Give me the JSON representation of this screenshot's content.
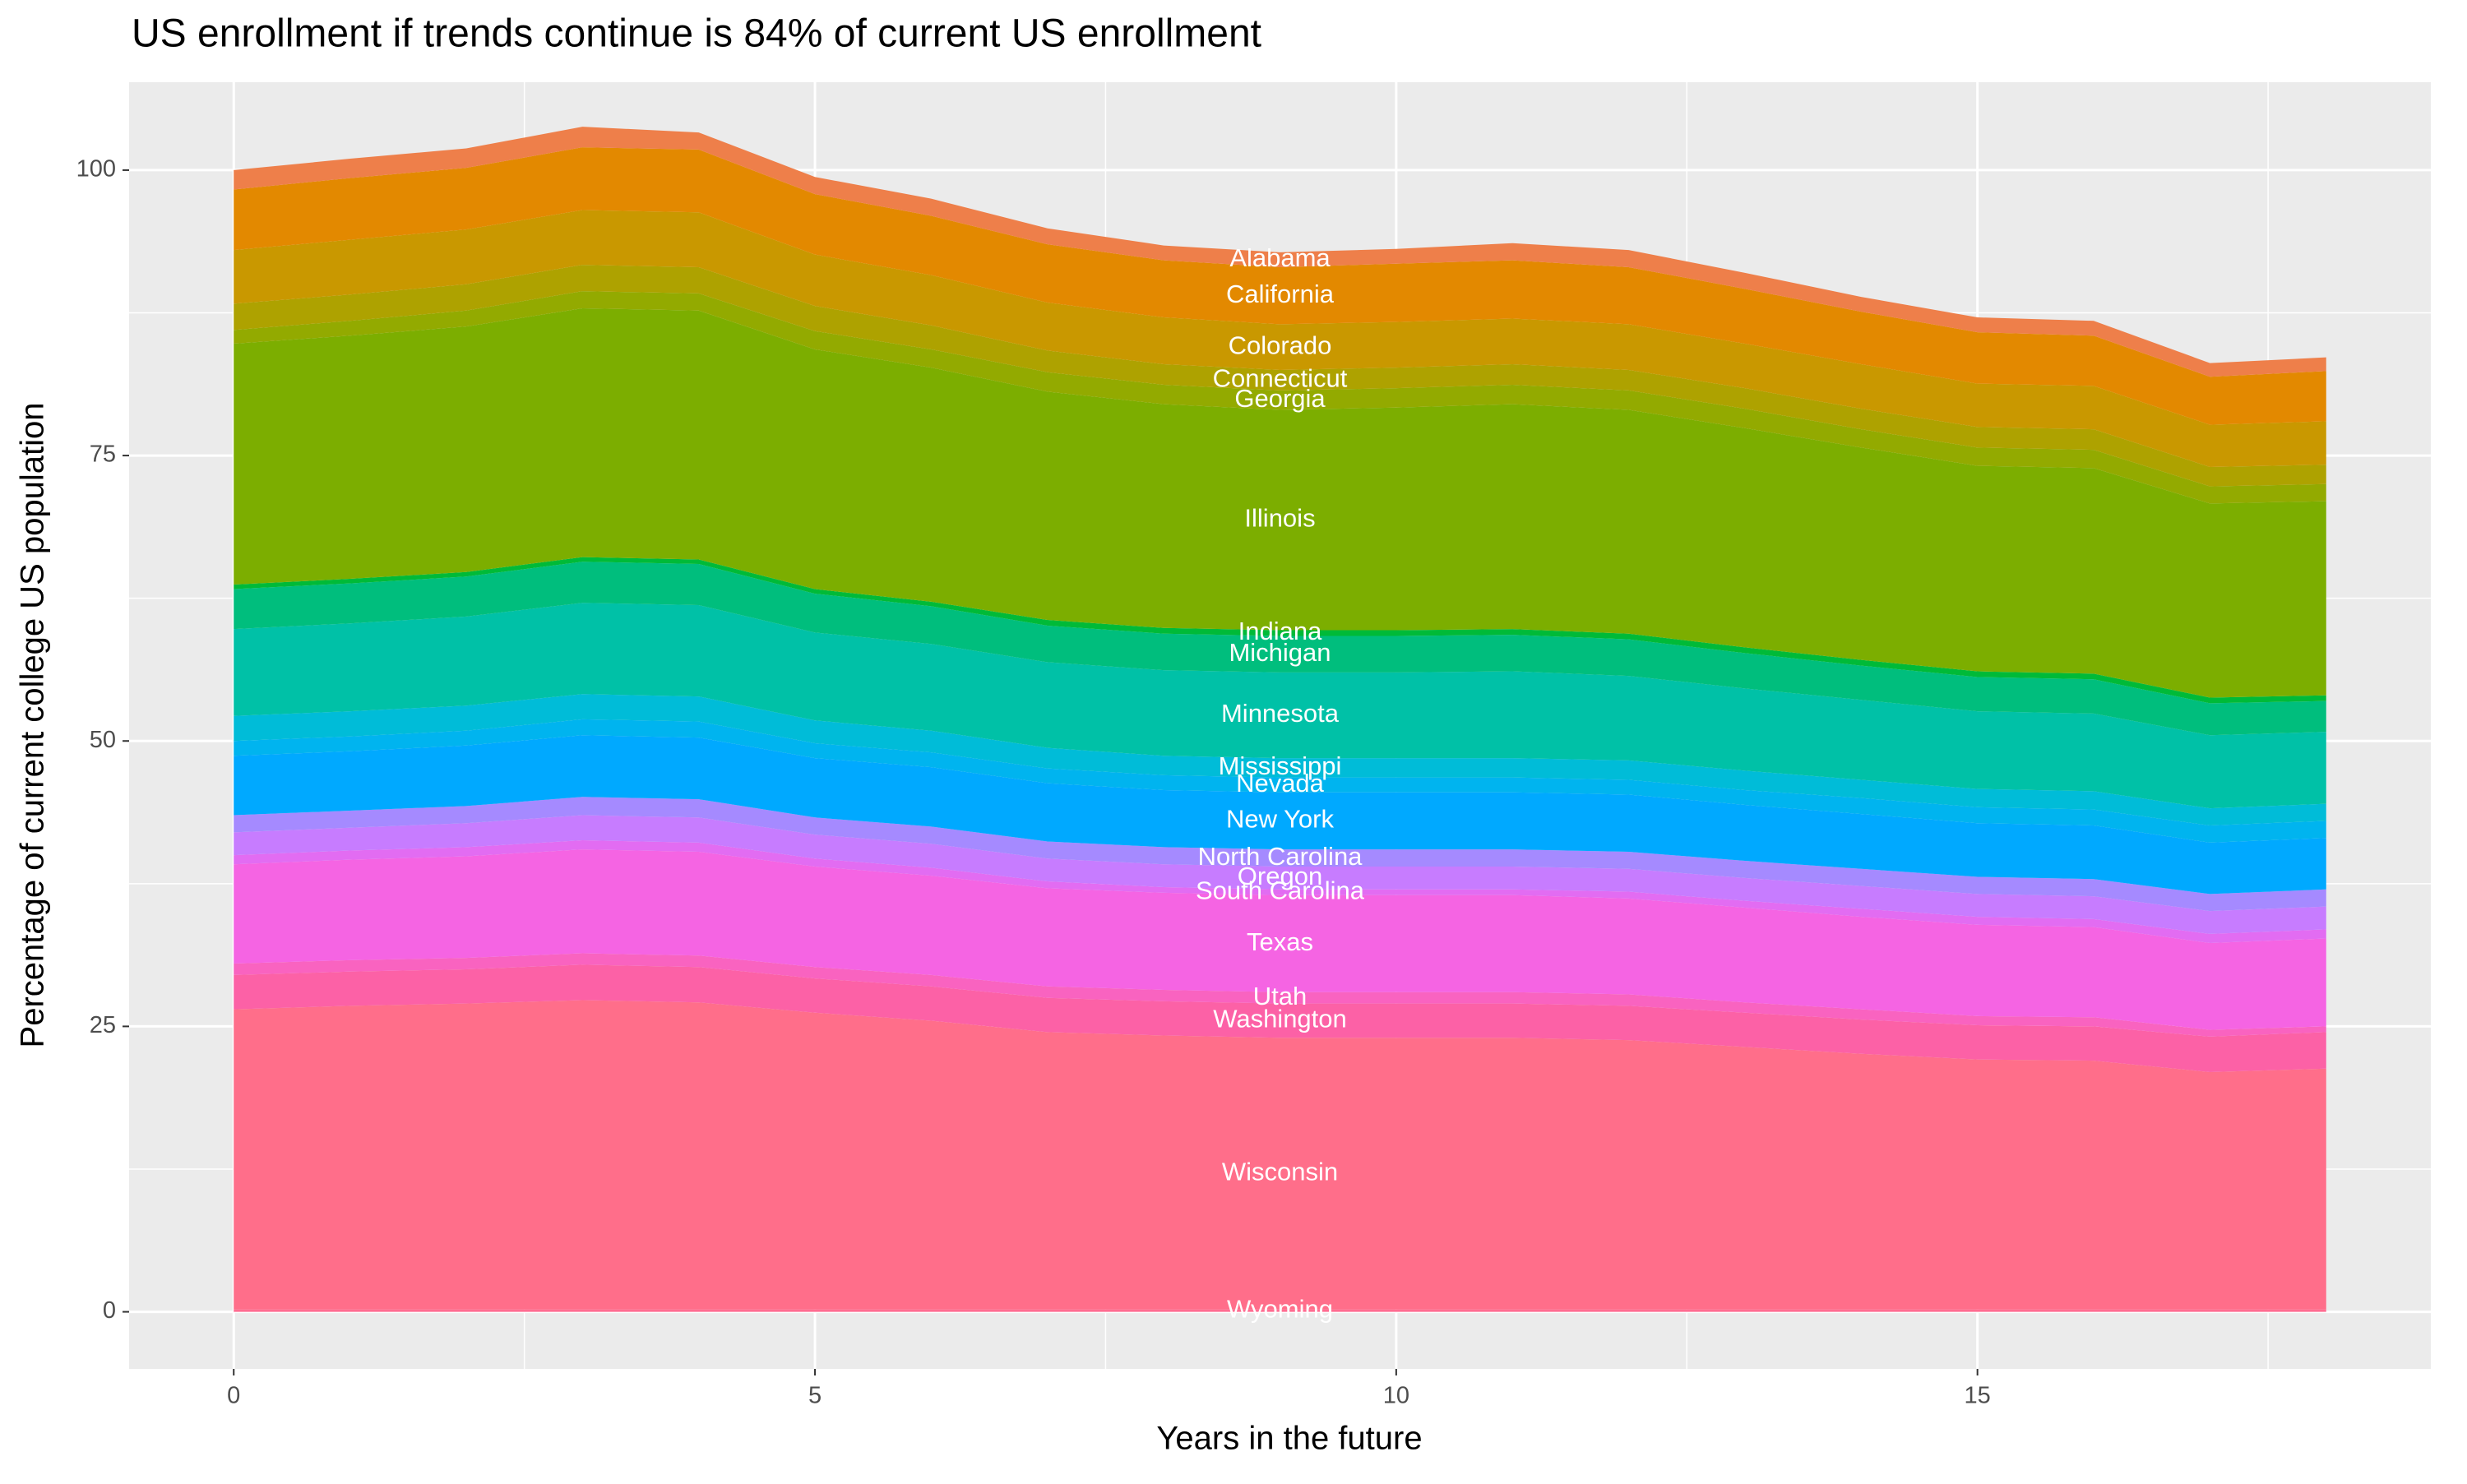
{
  "chart_data": {
    "type": "stacked_area",
    "title": "US enrollment if trends continue is 84% of current US enrollment",
    "x_label": "Years in the future",
    "y_label": "Percentage of current college US population",
    "x": [
      0,
      1,
      2,
      3,
      4,
      5,
      6,
      7,
      8,
      9,
      10,
      11,
      12,
      13,
      14,
      15,
      16,
      17,
      18
    ],
    "xlim": [
      -0.9,
      18.9
    ],
    "xticks": [
      0,
      5,
      10,
      15
    ],
    "ylim": [
      -5,
      107.7
    ],
    "yticks": [
      0,
      25,
      50,
      75,
      100
    ],
    "grid": true,
    "series": [
      {
        "name": "Wyoming",
        "color": "#FF6C91",
        "values": [
          0.2,
          0.2,
          0.2,
          0.2,
          0.2,
          0.2,
          0.2,
          0.2,
          0.2,
          0.2,
          0.2,
          0.2,
          0.2,
          0.2,
          0.2,
          0.2,
          0.2,
          0.2,
          0.2
        ]
      },
      {
        "name": "Wisconsin",
        "color": "#FF6E8A",
        "values": [
          26.3,
          26.6,
          26.8,
          27.1,
          26.9,
          26,
          25.3,
          24.3,
          24,
          23.8,
          23.8,
          23.8,
          23.6,
          23,
          22.4,
          21.9,
          21.8,
          20.8,
          21.1
        ]
      },
      {
        "name": "Washington",
        "color": "#FC61A6",
        "values": [
          3,
          3,
          3,
          3.1,
          3.1,
          3,
          3,
          3,
          3,
          3,
          3,
          3,
          3,
          3,
          3,
          3,
          3,
          3.1,
          3.2
        ]
      },
      {
        "name": "Utah",
        "color": "#F963C0",
        "values": [
          1,
          1,
          1,
          1,
          1,
          1,
          1,
          1,
          1,
          1,
          1,
          1,
          1,
          0.9,
          0.9,
          0.8,
          0.8,
          0.6,
          0.5
        ]
      },
      {
        "name": "Texas",
        "color": "#F564E3",
        "values": [
          8.7,
          8.8,
          8.9,
          9.1,
          9.1,
          8.8,
          8.7,
          8.6,
          8.5,
          8.5,
          8.5,
          8.5,
          8.4,
          8.3,
          8.1,
          8,
          7.9,
          7.6,
          7.7
        ]
      },
      {
        "name": "South Carolina",
        "color": "#E26CF2",
        "values": [
          0.8,
          0.8,
          0.8,
          0.8,
          0.8,
          0.7,
          0.7,
          0.6,
          0.5,
          0.5,
          0.5,
          0.5,
          0.6,
          0.6,
          0.7,
          0.7,
          0.7,
          0.8,
          0.8
        ]
      },
      {
        "name": "Oregon",
        "color": "#C77CFF",
        "values": [
          2,
          2,
          2.1,
          2.2,
          2.2,
          2.1,
          2.1,
          2,
          2,
          2,
          2,
          2,
          2,
          2,
          2,
          2,
          2,
          2,
          2
        ]
      },
      {
        "name": "North Carolina",
        "color": "#A58AFF",
        "values": [
          1.5,
          1.5,
          1.5,
          1.6,
          1.6,
          1.5,
          1.5,
          1.5,
          1.5,
          1.5,
          1.5,
          1.5,
          1.5,
          1.5,
          1.5,
          1.5,
          1.5,
          1.5,
          1.5
        ]
      },
      {
        "name": "New York",
        "color": "#00A9FF",
        "values": [
          5.2,
          5.2,
          5.3,
          5.4,
          5.4,
          5.2,
          5.2,
          5.1,
          5,
          5,
          5,
          5,
          5,
          4.9,
          4.8,
          4.7,
          4.7,
          4.5,
          4.5
        ]
      },
      {
        "name": "Nevada",
        "color": "#00B4EF",
        "values": [
          1.3,
          1.3,
          1.3,
          1.4,
          1.4,
          1.3,
          1.3,
          1.3,
          1.3,
          1.3,
          1.3,
          1.3,
          1.3,
          1.3,
          1.4,
          1.4,
          1.4,
          1.5,
          1.5
        ]
      },
      {
        "name": "Mississippi",
        "color": "#00BCD8",
        "values": [
          2.2,
          2.2,
          2.2,
          2.2,
          2.2,
          2,
          1.9,
          1.8,
          1.7,
          1.7,
          1.7,
          1.7,
          1.7,
          1.7,
          1.6,
          1.6,
          1.6,
          1.5,
          1.5
        ]
      },
      {
        "name": "Minnesota",
        "color": "#00C1A7",
        "values": [
          7.6,
          7.7,
          7.8,
          8,
          8,
          7.7,
          7.6,
          7.5,
          7.5,
          7.5,
          7.5,
          7.6,
          7.4,
          7.2,
          7,
          6.8,
          6.8,
          6.4,
          6.3
        ]
      },
      {
        "name": "Michigan",
        "color": "#00BE7D",
        "values": [
          3.5,
          3.5,
          3.5,
          3.6,
          3.6,
          3.4,
          3.3,
          3.2,
          3.2,
          3.2,
          3.2,
          3.2,
          3.2,
          3.1,
          3,
          3,
          3,
          2.8,
          2.7
        ]
      },
      {
        "name": "Indiana",
        "color": "#00BA38",
        "values": [
          0.4,
          0.4,
          0.4,
          0.4,
          0.4,
          0.4,
          0.4,
          0.5,
          0.5,
          0.5,
          0.5,
          0.5,
          0.5,
          0.5,
          0.5,
          0.5,
          0.5,
          0.5,
          0.5
        ]
      },
      {
        "name": "Illinois",
        "color": "#7CAE00",
        "values": [
          21.1,
          21.3,
          21.5,
          21.8,
          21.8,
          21,
          20.5,
          20,
          19.6,
          19.3,
          19.5,
          19.7,
          19.6,
          19.2,
          18.6,
          18,
          18,
          17,
          17
        ]
      },
      {
        "name": "Georgia",
        "color": "#93AA00",
        "values": [
          1.2,
          1.3,
          1.4,
          1.5,
          1.5,
          1.6,
          1.6,
          1.7,
          1.7,
          1.7,
          1.7,
          1.7,
          1.7,
          1.7,
          1.6,
          1.6,
          1.6,
          1.5,
          1.5
        ]
      },
      {
        "name": "Connecticut",
        "color": "#AEA200",
        "values": [
          2.3,
          2.3,
          2.3,
          2.3,
          2.3,
          2.2,
          2.1,
          1.9,
          1.8,
          1.8,
          1.8,
          1.8,
          1.8,
          1.8,
          1.8,
          1.8,
          1.8,
          1.7,
          1.7
        ]
      },
      {
        "name": "Colorado",
        "color": "#C99800",
        "values": [
          4.7,
          4.8,
          4.8,
          4.8,
          4.8,
          4.5,
          4.4,
          4.2,
          4.1,
          4,
          4,
          4,
          4,
          3.9,
          3.9,
          3.8,
          3.8,
          3.7,
          3.8
        ]
      },
      {
        "name": "California",
        "color": "#E38900",
        "values": [
          5.3,
          5.4,
          5.4,
          5.5,
          5.5,
          5.3,
          5.2,
          5.1,
          5,
          5,
          5.1,
          5.1,
          5,
          4.8,
          4.6,
          4.5,
          4.4,
          4.2,
          4.4
        ]
      },
      {
        "name": "Alabama",
        "color": "#EE7F4A",
        "values": [
          1.7,
          1.7,
          1.7,
          1.8,
          1.5,
          1.5,
          1.5,
          1.4,
          1.3,
          1.3,
          1.3,
          1.5,
          1.5,
          1.4,
          1.3,
          1.3,
          1.3,
          1.2,
          1.2
        ]
      }
    ]
  }
}
